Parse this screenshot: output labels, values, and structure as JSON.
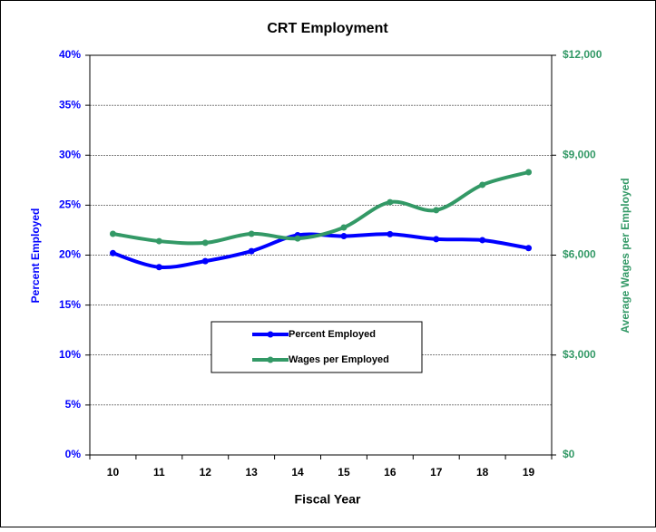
{
  "chart_data": {
    "type": "line",
    "title": "CRT Employment",
    "x_label": "Fiscal Year",
    "y_label": "Percent Employed",
    "y2_label": "Average Wages per Employed",
    "categories": [
      "10",
      "11",
      "12",
      "13",
      "14",
      "15",
      "16",
      "17",
      "18",
      "19"
    ],
    "series": [
      {
        "name": "Percent Employed",
        "color": "#0000ff",
        "values": [
          20.2,
          18.8,
          19.4,
          20.4,
          22.0,
          21.9,
          22.1,
          21.6,
          21.5,
          20.7
        ]
      },
      {
        "name": "Wages per Employed",
        "color": "#339966",
        "axis": "y2",
        "values": [
          6640,
          6420,
          6370,
          6640,
          6500,
          6830,
          7590,
          7350,
          8110,
          8490
        ]
      }
    ],
    "ylim": [
      0,
      40
    ],
    "yticks": [
      {
        "value": 0,
        "label": "0%"
      },
      {
        "value": 5,
        "label": "5%"
      },
      {
        "value": 10,
        "label": "10%"
      },
      {
        "value": 15,
        "label": "15%"
      },
      {
        "value": 20,
        "label": "20%"
      },
      {
        "value": 25,
        "label": "25%"
      },
      {
        "value": 30,
        "label": "30%"
      },
      {
        "value": 35,
        "label": "35%"
      },
      {
        "value": 40,
        "label": "40%"
      }
    ],
    "y2lim": [
      0,
      12000
    ],
    "y2ticks": [
      {
        "value": 0,
        "label": "$0"
      },
      {
        "value": 3000,
        "label": "$3,000"
      },
      {
        "value": 6000,
        "label": "$6,000"
      },
      {
        "value": 9000,
        "label": "$9,000"
      },
      {
        "value": 12000,
        "label": "$12,000"
      }
    ],
    "grid": true,
    "legend": "center"
  }
}
